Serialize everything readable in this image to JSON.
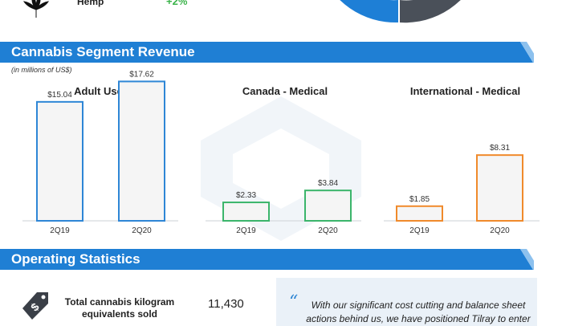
{
  "top": {
    "label": "Hemp",
    "pct": "+2%",
    "colors": {
      "donut_blue": "#1e7fd6",
      "donut_gray": "#4a5059",
      "green": "#3bb34a"
    }
  },
  "sections": {
    "revenue_title": "Cannabis Segment Revenue",
    "revenue_subtitle": "(in millions of US$)",
    "operating_title": "Operating Statistics",
    "bar_color": "#1e7fd6"
  },
  "chart_data": [
    {
      "type": "bar",
      "title": "Adult Use",
      "categories": [
        "2Q19",
        "2Q20"
      ],
      "values": [
        15.04,
        17.62
      ],
      "labels": [
        "$15.04",
        "$17.62"
      ],
      "color": "#2e86d6"
    },
    {
      "type": "bar",
      "title": "Canada - Medical",
      "categories": [
        "2Q19",
        "2Q20"
      ],
      "values": [
        2.33,
        3.84
      ],
      "labels": [
        "$2.33",
        "$3.84"
      ],
      "color": "#3bb56b"
    },
    {
      "type": "bar",
      "title": "International - Medical",
      "categories": [
        "2Q19",
        "2Q20"
      ],
      "values": [
        1.85,
        8.31
      ],
      "labels": [
        "$1.85",
        "$8.31"
      ],
      "color": "#f08a2b"
    }
  ],
  "stats": {
    "label_line1": "Total cannabis kilogram",
    "label_line2": "equivalents sold",
    "value": "11,430"
  },
  "quote": {
    "mark": "“",
    "line1": "With our significant cost cutting and balance sheet",
    "line2": "actions behind us, we have positioned Tilray to enter"
  }
}
